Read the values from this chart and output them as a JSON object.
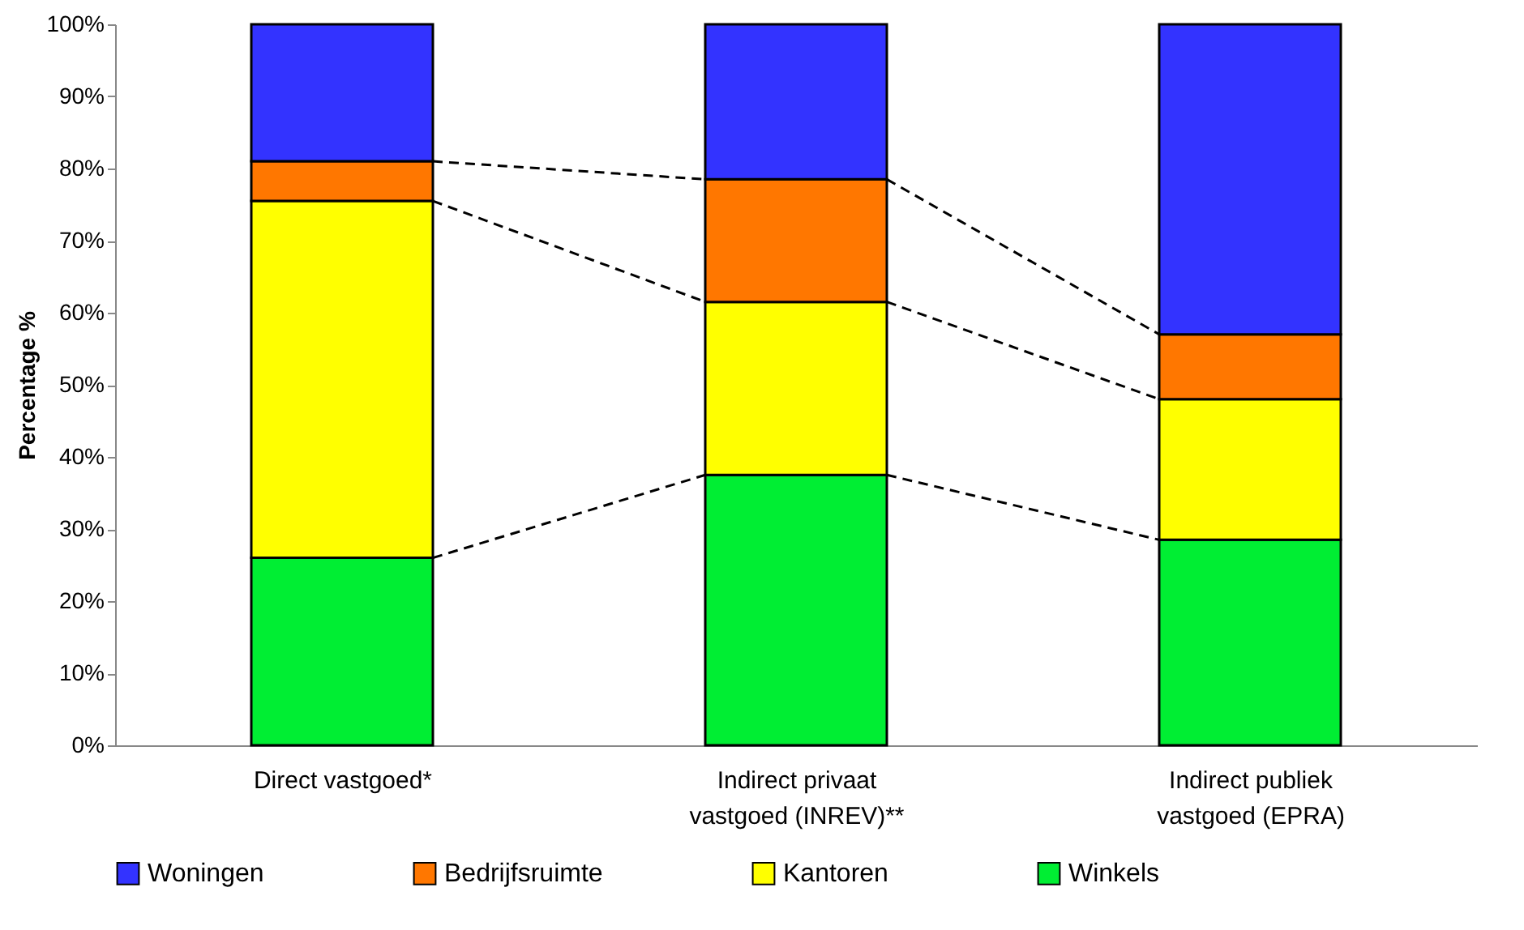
{
  "chart_data": {
    "type": "bar",
    "stacked": true,
    "ylabel": "Percentage %",
    "categories": [
      "Direct vastgoed*",
      "Indirect privaat vastgoed (INREV)**",
      "Indirect publiek vastgoed (EPRA)"
    ],
    "series": [
      {
        "name": "Winkels",
        "color": "#00ee33",
        "values": [
          26,
          37.5,
          28.5
        ]
      },
      {
        "name": "Kantoren",
        "color": "#ffff00",
        "values": [
          49.5,
          24,
          19.5
        ]
      },
      {
        "name": "Bedrijfsruimte",
        "color": "#ff7700",
        "values": [
          5.5,
          17,
          9
        ]
      },
      {
        "name": "Woningen",
        "color": "#3333ff",
        "values": [
          19,
          21.5,
          43
        ]
      }
    ],
    "ylim": [
      0,
      100
    ],
    "yticks": [
      {
        "value": 0,
        "label": "0%"
      },
      {
        "value": 10,
        "label": "10%"
      },
      {
        "value": 20,
        "label": "20%"
      },
      {
        "value": 30,
        "label": "30%"
      },
      {
        "value": 40,
        "label": "40%"
      },
      {
        "value": 50,
        "label": "50%"
      },
      {
        "value": 60,
        "label": "60%"
      },
      {
        "value": 70,
        "label": "70%"
      },
      {
        "value": 80,
        "label": "80%"
      },
      {
        "value": 90,
        "label": "90%"
      },
      {
        "value": 100,
        "label": "100%"
      }
    ],
    "grid": false,
    "legend": "bottom"
  }
}
